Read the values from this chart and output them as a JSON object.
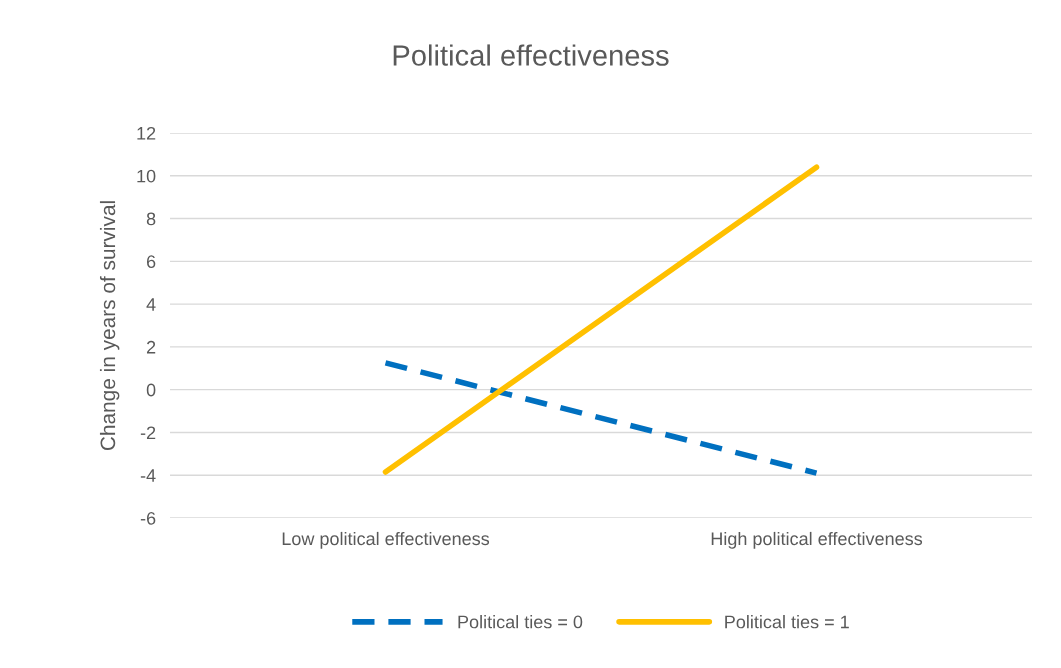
{
  "chart_data": {
    "type": "line",
    "title": "Political effectiveness",
    "ylabel": "Change in years of survival",
    "categories": [
      "Low political effectiveness",
      "High political effectiveness"
    ],
    "series": [
      {
        "name": "Political ties = 0",
        "color": "#0070c0",
        "values": [
          1.25,
          -3.9
        ],
        "line_style": "dashed"
      },
      {
        "name": "Political ties = 1",
        "color": "#ffc000",
        "values": [
          -3.85,
          10.4
        ],
        "line_style": "solid"
      }
    ],
    "ylim": [
      -6,
      12
    ],
    "yticks": [
      -6,
      -4,
      -2,
      0,
      2,
      4,
      6,
      8,
      10,
      12
    ],
    "grid": "y",
    "legend": "bottom",
    "marker": "none"
  }
}
